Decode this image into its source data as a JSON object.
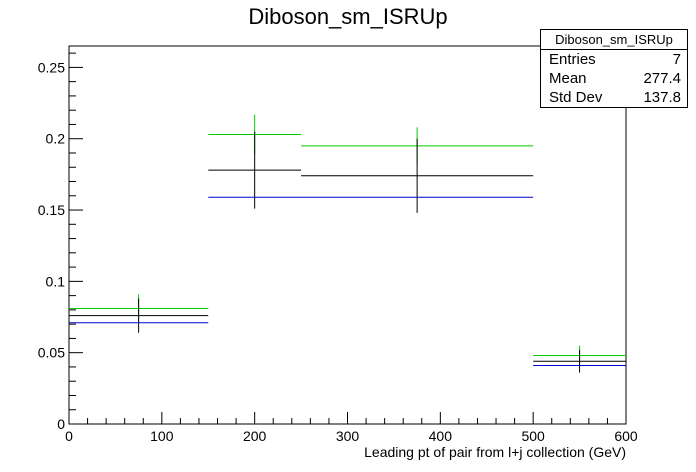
{
  "title": "Diboson_sm_ISRUp",
  "stats_box": {
    "name": "Diboson_sm_ISRUp",
    "rows": [
      {
        "label": "Entries",
        "value": "7"
      },
      {
        "label": "Mean",
        "value": "277.4"
      },
      {
        "label": "Std Dev",
        "value": "137.8"
      }
    ]
  },
  "chart_data": {
    "type": "scatter",
    "title": "Diboson_sm_ISRUp",
    "xlabel": "Leading pt of pair from l+j collection (GeV)",
    "ylabel": "",
    "xlim": [
      0,
      600
    ],
    "ylim": [
      0,
      0.265
    ],
    "x_ticks": [
      0,
      100,
      200,
      300,
      400,
      500,
      600
    ],
    "x_tick_labels": [
      "0",
      "100",
      "200",
      "300",
      "400",
      "500",
      "600"
    ],
    "y_ticks": [
      0,
      0.05,
      0.1,
      0.15,
      0.2,
      0.25
    ],
    "y_tick_labels": [
      "0",
      "0.05",
      "0.1",
      "0.15",
      "0.2",
      "0.25"
    ],
    "grid": false,
    "bins": [
      {
        "low": 0,
        "high": 150,
        "center": 75
      },
      {
        "low": 150,
        "high": 250,
        "center": 200
      },
      {
        "low": 250,
        "high": 500,
        "center": 375
      },
      {
        "low": 500,
        "high": 600,
        "center": 550
      }
    ],
    "series": [
      {
        "color": "#00cc00",
        "values": [
          0.081,
          0.203,
          0.195,
          0.048
        ],
        "errors": [
          0.01,
          0.014,
          0.013,
          0.007
        ]
      },
      {
        "color": "#000000",
        "values": [
          0.076,
          0.178,
          0.174,
          0.044
        ],
        "errors": [
          0.012,
          0.027,
          0.026,
          0.008
        ]
      },
      {
        "color": "#0000cc",
        "values": [
          0.071,
          0.159,
          0.159,
          0.041
        ],
        "errors": [
          0,
          0,
          0,
          0
        ]
      }
    ]
  }
}
